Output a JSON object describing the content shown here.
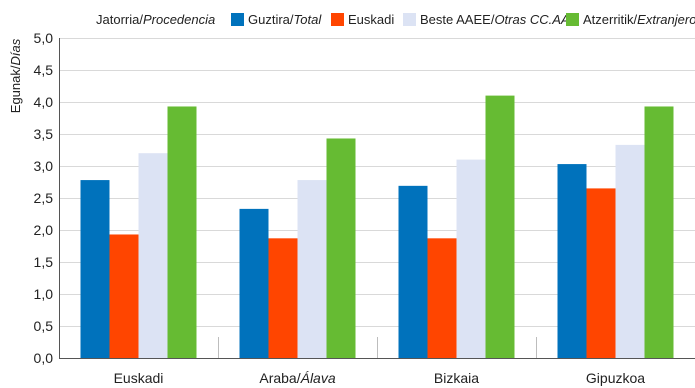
{
  "chart_data": {
    "type": "bar",
    "ylabel": {
      "main": "Egunak/",
      "italic": "Días"
    },
    "legend_title": {
      "main": "Jatorria/",
      "italic": "Procedencia"
    },
    "legend_placement": "top",
    "ylim": [
      0,
      5
    ],
    "yticks": [
      "0,0",
      "0,5",
      "1,0",
      "1,5",
      "2,0",
      "2,5",
      "3,0",
      "3,5",
      "4,0",
      "4,5",
      "5,0"
    ],
    "grid": "horizontal",
    "categories": [
      {
        "main": "Euskadi",
        "italic": ""
      },
      {
        "main": "Araba/",
        "italic": "Álava"
      },
      {
        "main": "Bizkaia",
        "italic": ""
      },
      {
        "main": "Gipuzkoa",
        "italic": ""
      }
    ],
    "series": [
      {
        "name": {
          "main": "Guztira/",
          "italic": "Total"
        },
        "color": "#0072bc",
        "values": [
          2.78,
          2.33,
          2.69,
          3.03
        ]
      },
      {
        "name": {
          "main": "Euskadi",
          "italic": ""
        },
        "color": "#ff4500",
        "values": [
          1.93,
          1.87,
          1.87,
          2.65
        ]
      },
      {
        "name": {
          "main": "Beste AAEE/",
          "italic": "Otras CC.AA."
        },
        "color": "#dce3f4",
        "values": [
          3.2,
          2.78,
          3.1,
          3.33
        ]
      },
      {
        "name": {
          "main": "Atzerritik/",
          "italic": "Extranjero"
        },
        "color": "#66bb33",
        "values": [
          3.93,
          3.43,
          4.1,
          3.93
        ]
      }
    ]
  }
}
